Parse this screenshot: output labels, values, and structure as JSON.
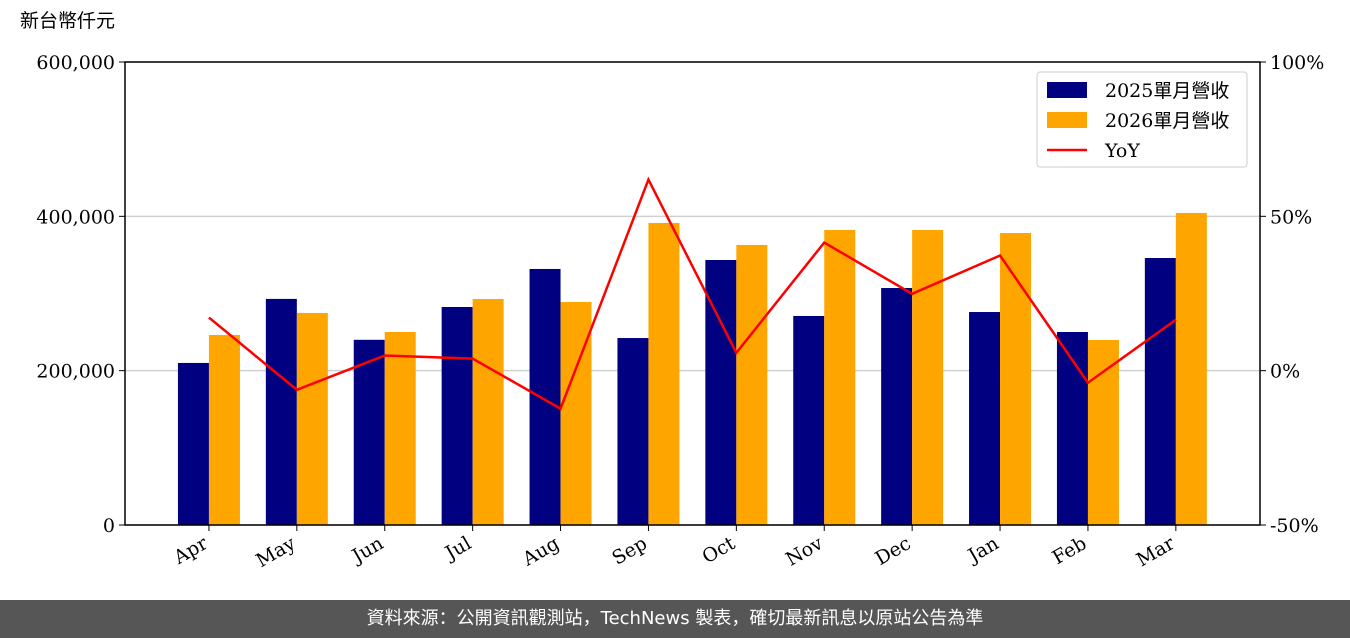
{
  "chart_data": {
    "type": "bar",
    "y_label": "新台幣仟元",
    "categories": [
      "Apr",
      "May",
      "Jun",
      "Jul",
      "Aug",
      "Sep",
      "Oct",
      "Nov",
      "Dec",
      "Jan",
      "Feb",
      "Mar"
    ],
    "series": [
      {
        "name": "2025單月營收",
        "color": "#000080",
        "values": [
          210000,
          293000,
          240000,
          282500,
          331800,
          242300,
          343400,
          270900,
          307100,
          276000,
          250100,
          346000
        ]
      },
      {
        "name": "2026單月營收",
        "color": "#FFA500",
        "values": [
          246200,
          274800,
          250100,
          292900,
          289000,
          391400,
          362900,
          382300,
          382300,
          378400,
          239800,
          404400
        ]
      },
      {
        "name": "YoY",
        "type": "line",
        "axis": "y2",
        "color": "#FF0000",
        "values": [
          17.2,
          -6.2,
          4.9,
          3.9,
          -12.3,
          61.9,
          5.8,
          41.5,
          24.9,
          37.3,
          -3.9,
          16.5
        ]
      }
    ],
    "ylim": [
      0,
      600000
    ],
    "yticks": [
      0,
      {
        "value": 200000,
        "label": "200,000"
      },
      {
        "value": 400000,
        "label": "400,000"
      },
      {
        "value": 600000,
        "label": "600,000"
      }
    ],
    "y2lim": [
      -50,
      100
    ],
    "y2ticks": [
      {
        "value": -50,
        "label": "-50%"
      },
      {
        "value": 0,
        "label": "0%"
      },
      {
        "value": 50,
        "label": "50%"
      },
      {
        "value": 100,
        "label": "100%"
      }
    ],
    "grid": true,
    "legend": "upper right"
  },
  "footer": "資料來源：公開資訊觀測站，TechNews 製表，確切最新訊息以原站公告為準"
}
